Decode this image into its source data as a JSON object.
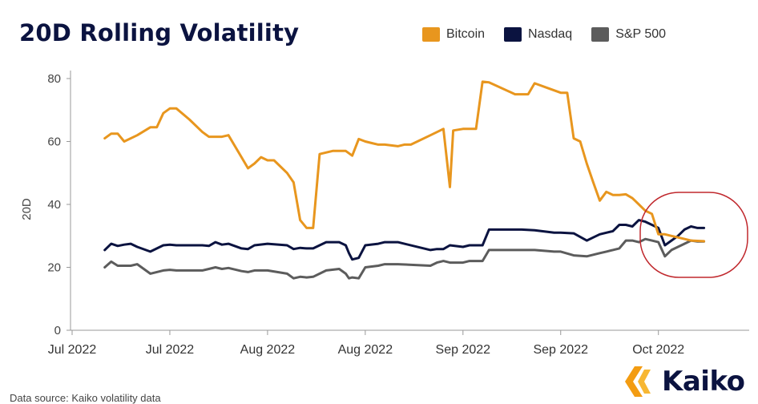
{
  "chart_data": {
    "type": "line",
    "title": "20D Rolling Volatility",
    "xlabel": "",
    "ylabel": "20D",
    "ylim": [
      0,
      80
    ],
    "yticks": [
      0,
      20,
      40,
      60,
      80
    ],
    "x_index_range": [
      0,
      110
    ],
    "x_ticks": [
      {
        "label": "Jul 2022",
        "x": 0
      },
      {
        "label": "Jul 2022",
        "x": 15
      },
      {
        "label": "Aug 2022",
        "x": 30
      },
      {
        "label": "Aug 2022",
        "x": 45
      },
      {
        "label": "Sep 2022",
        "x": 60
      },
      {
        "label": "Sep 2022",
        "x": 75
      },
      {
        "label": "Oct 2022",
        "x": 90
      }
    ],
    "legend": [
      "Bitcoin",
      "Nasdaq",
      "S&P 500"
    ],
    "series": [
      {
        "name": "Bitcoin",
        "color": "#e8961e",
        "x": [
          5,
          6,
          7,
          8,
          10,
          12,
          13,
          14,
          15,
          16,
          18,
          20,
          21,
          22,
          23,
          24,
          26,
          27,
          28,
          29,
          30,
          31,
          33,
          34,
          35,
          36,
          36.5,
          37,
          38,
          40,
          41,
          42,
          43,
          44,
          45,
          46,
          47,
          48,
          50,
          51,
          52,
          55,
          57,
          58,
          58.5,
          60,
          61,
          62,
          63,
          64,
          68,
          69,
          70,
          71,
          73,
          75,
          76,
          77,
          78,
          79,
          80,
          81,
          82,
          83,
          84,
          85,
          86,
          87,
          88,
          89,
          90,
          91,
          92,
          93,
          95,
          97
        ],
        "values": [
          61,
          62.5,
          62.5,
          60,
          62,
          64.5,
          64.5,
          69,
          70.5,
          70.5,
          67,
          63,
          61.5,
          61.5,
          61.5,
          62,
          55,
          51.5,
          53,
          55,
          54,
          54,
          50,
          47,
          35,
          32.5,
          32.5,
          32.5,
          56,
          57,
          57,
          57,
          55.5,
          60.8,
          60,
          59.5,
          59,
          59,
          58.5,
          59,
          59,
          62,
          64,
          45.5,
          63.5,
          64,
          64,
          64,
          79,
          78.8,
          75,
          75,
          75,
          78.5,
          77,
          75.5,
          75.5,
          61,
          60,
          53,
          47,
          41.2,
          44,
          43,
          43,
          43.2,
          42,
          40,
          38,
          37,
          30.5,
          30.5,
          30,
          29.5,
          28.5,
          28.3
        ]
      },
      {
        "name": "Nasdaq",
        "color": "#0b1340",
        "x": [
          5,
          6,
          7,
          8,
          9,
          10,
          12,
          14,
          15,
          16,
          18,
          20,
          21,
          22,
          23,
          24,
          26,
          27,
          28,
          30,
          33,
          34,
          35,
          36,
          37,
          38,
          39,
          41,
          42,
          42.5,
          43,
          44,
          45,
          47,
          48,
          50,
          55,
          56,
          57,
          58,
          60,
          61,
          62,
          63,
          64,
          68,
          69,
          71,
          74,
          75,
          77,
          79,
          80,
          81,
          82,
          83,
          84,
          85,
          86,
          87,
          88,
          89,
          90,
          91,
          92,
          93,
          94,
          95,
          96,
          97
        ],
        "values": [
          25.5,
          27.5,
          26.8,
          27.2,
          27.5,
          26.5,
          25,
          27,
          27.2,
          27,
          27,
          27,
          26.8,
          28,
          27.2,
          27.5,
          26,
          25.8,
          27,
          27.5,
          27,
          25.8,
          26.2,
          26,
          26,
          27,
          28,
          28,
          27,
          24.5,
          22.5,
          23,
          27,
          27.5,
          28,
          28,
          25.5,
          25.8,
          25.8,
          27,
          26.5,
          27,
          27,
          27,
          32,
          32,
          32,
          31.8,
          31,
          31,
          30.8,
          28.5,
          29.5,
          30.5,
          31,
          31.5,
          33.5,
          33.5,
          33,
          35,
          34.5,
          33.5,
          32.5,
          27,
          28.5,
          30,
          32,
          33,
          32.5,
          32.5
        ]
      },
      {
        "name": "S&P 500",
        "color": "#5c5c5c",
        "x": [
          5,
          6,
          7,
          8,
          9,
          10,
          12,
          14,
          15,
          16,
          18,
          20,
          21,
          22,
          23,
          24,
          26,
          27,
          28,
          30,
          33,
          34,
          35,
          36,
          37,
          38,
          39,
          41,
          42,
          42.5,
          43,
          44,
          45,
          47,
          48,
          50,
          55,
          56,
          57,
          58,
          60,
          61,
          62,
          63,
          64,
          68,
          69,
          71,
          74,
          75,
          77,
          79,
          80,
          81,
          82,
          83,
          84,
          85,
          86,
          87,
          88,
          89,
          90,
          91,
          92,
          93,
          94,
          95,
          96,
          97
        ],
        "values": [
          20,
          21.8,
          20.5,
          20.5,
          20.5,
          21,
          18,
          19,
          19.2,
          19,
          19,
          19,
          19.5,
          20,
          19.5,
          19.8,
          18.8,
          18.5,
          19,
          19,
          18,
          16.5,
          17,
          16.8,
          17,
          18,
          19,
          19.5,
          18,
          16.5,
          16.8,
          16.5,
          20,
          20.5,
          21,
          21,
          20.5,
          21.5,
          22,
          21.5,
          21.5,
          22,
          22,
          22,
          25.5,
          25.5,
          25.5,
          25.5,
          25,
          25,
          23.8,
          23.5,
          24,
          24.5,
          25,
          25.5,
          26,
          28.5,
          28.5,
          28,
          29,
          28.5,
          28,
          23.5,
          25.5,
          26.5,
          27.5,
          28.5,
          28.2,
          28.2
        ]
      }
    ],
    "annotation": "red-ellipse-highlight"
  },
  "footer": {
    "source": "Data source: Kaiko volatility data",
    "brand": "Kaiko"
  },
  "colors": {
    "title": "#0b1340",
    "axis": "#888888",
    "highlight": "#c0282d",
    "logo_orange": "#f39c12"
  }
}
